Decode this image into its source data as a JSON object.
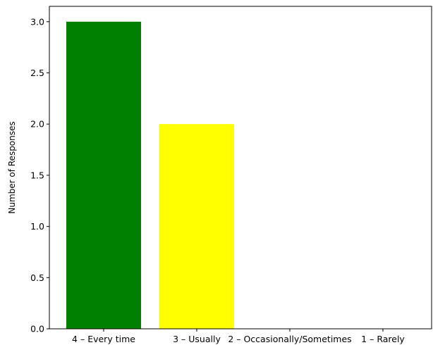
{
  "chart_data": {
    "type": "bar",
    "title": "",
    "xlabel": "",
    "ylabel": "Number of Responses",
    "categories": [
      "4 – Every time",
      "3 – Usually",
      "2 – Occasionally/Sometimes",
      "1 – Rarely"
    ],
    "values": [
      3,
      2,
      0,
      0
    ],
    "colors": [
      "#008000",
      "#ffff00",
      "#ff0000",
      "#800000"
    ],
    "ylim": [
      0,
      3.15
    ],
    "yticks": [
      0.0,
      0.5,
      1.0,
      1.5,
      2.0,
      2.5,
      3.0
    ],
    "ytick_labels": [
      "0.0",
      "0.5",
      "1.0",
      "1.5",
      "2.0",
      "2.5",
      "3.0"
    ],
    "grid": false,
    "legend": "none"
  }
}
